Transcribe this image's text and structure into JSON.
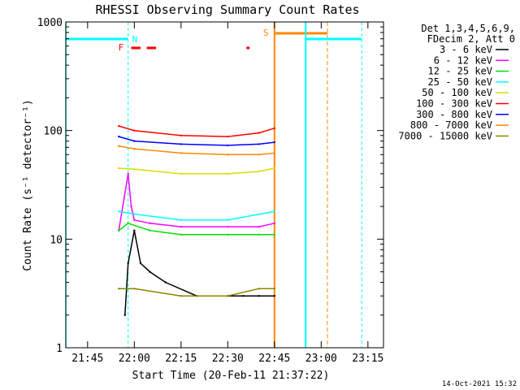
{
  "title": "RHESSI Observing Summary Count Rates",
  "timestamp": "14-Oct-2021 15:32",
  "chart_data": {
    "type": "line",
    "title": "RHESSI Observing Summary Count Rates",
    "xlabel": "Start Time (20-Feb-11 21:37:22)",
    "ylabel": "Count Rate (s⁻¹ detector⁻¹)",
    "yscale": "log",
    "ylim": [
      1,
      1000
    ],
    "xlim_minutes": [
      21.63,
      23.33
    ],
    "x_ticks": [
      "21:45",
      "22:00",
      "22:15",
      "22:30",
      "22:45",
      "23:00",
      "23:15"
    ],
    "y_ticks": [
      "1",
      "10",
      "100",
      "1000"
    ],
    "legend_header": [
      "Det 1,3,4,5,6,9,",
      "FDecim 2, Att 0"
    ],
    "legend_position": "top-right",
    "series": [
      {
        "name": "3 - 6 keV",
        "color": "#000000",
        "x": [
          "21:57",
          "21:58",
          "22:00",
          "22:02",
          "22:05",
          "22:10",
          "22:20",
          "22:30",
          "22:35",
          "22:40",
          "22:45"
        ],
        "y": [
          2,
          6,
          12,
          6,
          5,
          4,
          3,
          3,
          3,
          3,
          3
        ]
      },
      {
        "name": "6 - 12 keV",
        "color": "#ff00ff",
        "x": [
          "21:55",
          "21:58",
          "21:59",
          "22:00",
          "22:05",
          "22:15",
          "22:30",
          "22:40",
          "22:45"
        ],
        "y": [
          12,
          40,
          20,
          15,
          14,
          13,
          13,
          13,
          14
        ]
      },
      {
        "name": "12 - 25 keV",
        "color": "#00dd00",
        "x": [
          "21:55",
          "21:58",
          "22:05",
          "22:15",
          "22:30",
          "22:40",
          "22:45"
        ],
        "y": [
          12,
          14,
          12,
          11,
          11,
          11,
          11
        ]
      },
      {
        "name": "25 - 50 keV",
        "color": "#00ffff",
        "x": [
          "21:55",
          "22:00",
          "22:15",
          "22:30",
          "22:45"
        ],
        "y": [
          18,
          17,
          15,
          15,
          18
        ]
      },
      {
        "name": "50 - 100 keV",
        "color": "#dddd00",
        "x": [
          "21:55",
          "22:00",
          "22:15",
          "22:30",
          "22:40",
          "22:45"
        ],
        "y": [
          45,
          44,
          40,
          40,
          42,
          45
        ]
      },
      {
        "name": "100 - 300 keV",
        "color": "#ff0000",
        "x": [
          "21:55",
          "22:00",
          "22:15",
          "22:30",
          "22:40",
          "22:45"
        ],
        "y": [
          110,
          100,
          90,
          88,
          95,
          105
        ]
      },
      {
        "name": "300 - 800 keV",
        "color": "#0000ff",
        "x": [
          "21:55",
          "22:00",
          "22:15",
          "22:30",
          "22:40",
          "22:45"
        ],
        "y": [
          88,
          80,
          75,
          73,
          75,
          78
        ]
      },
      {
        "name": "800 - 7000 keV",
        "color": "#ff8800",
        "x": [
          "21:55",
          "22:00",
          "22:15",
          "22:30",
          "22:40",
          "22:45"
        ],
        "y": [
          72,
          68,
          62,
          60,
          60,
          62
        ]
      },
      {
        "name": "7000 - 15000 keV",
        "color": "#888800",
        "x": [
          "21:55",
          "22:00",
          "22:15",
          "22:30",
          "22:40",
          "22:45"
        ],
        "y": [
          3.5,
          3.5,
          3,
          3,
          3.5,
          3.5
        ]
      }
    ],
    "annotations": [
      {
        "label": "N",
        "color": "#00ffff"
      },
      {
        "label": "F",
        "color": "#ff0000"
      },
      {
        "label": "S",
        "color": "#ff8800"
      }
    ]
  }
}
